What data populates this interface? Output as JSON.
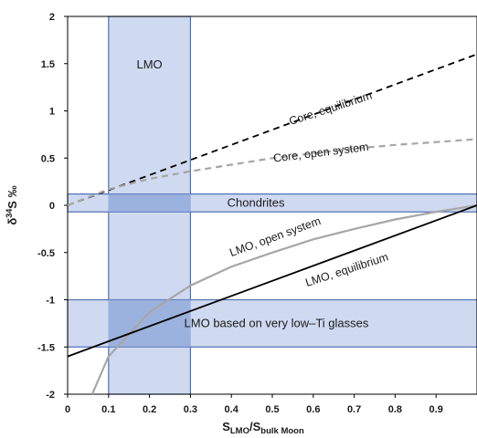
{
  "chart_data": {
    "type": "line",
    "x_range": [
      0,
      1
    ],
    "y_range": [
      -2,
      2
    ],
    "x_ticks": [
      "0",
      "0.1",
      "0.2",
      "0.3",
      "0.4",
      "0.5",
      "0.6",
      "0.7",
      "0.8",
      "0.9"
    ],
    "y_ticks": [
      "2",
      "1.5",
      "1",
      "0.5",
      "0",
      "-0.5",
      "-1",
      "-1.5",
      "-2"
    ],
    "xlabel": {
      "main": "S",
      "sub1": "LMO",
      "sep": "/S",
      "sub2": "bulk Moon"
    },
    "ylabel": {
      "delta": "δ",
      "sup": "34",
      "rest": "S ‰"
    },
    "bands": [
      {
        "label": "LMO",
        "orientation": "vertical",
        "range": [
          0.1,
          0.3
        ],
        "fill": "#c7d4ee",
        "stroke": "#4f6fb5"
      },
      {
        "label": "Chondrites",
        "orientation": "horizontal",
        "range": [
          -0.07,
          0.12
        ],
        "fill": "#c7d4ee",
        "stroke": "#4f6fb5"
      },
      {
        "label": "LMO based on very low–Ti glasses",
        "orientation": "horizontal",
        "range": [
          -1.5,
          -1.0
        ],
        "fill": "#c7d4ee",
        "stroke": "#4f6fb5"
      }
    ],
    "series": [
      {
        "name": "Core, equilibrium",
        "style": "dashed",
        "color": "#000000",
        "x": [
          0,
          1
        ],
        "y": [
          0,
          1.6
        ]
      },
      {
        "name": "Core, open system",
        "style": "dashed",
        "color": "#a6a6a6",
        "x": [
          0,
          0.1,
          0.2,
          0.3,
          0.4,
          0.5,
          0.6,
          0.7,
          0.8,
          0.9,
          1.0
        ],
        "y": [
          0,
          0.17,
          0.28,
          0.36,
          0.43,
          0.5,
          0.55,
          0.6,
          0.64,
          0.67,
          0.7
        ]
      },
      {
        "name": "LMO, open system",
        "style": "solid",
        "color": "#a6a6a6",
        "x": [
          0.06,
          0.1,
          0.2,
          0.3,
          0.4,
          0.5,
          0.6,
          0.7,
          0.8,
          0.9,
          1.0
        ],
        "y": [
          -2.0,
          -1.6,
          -1.13,
          -0.85,
          -0.65,
          -0.5,
          -0.36,
          -0.25,
          -0.15,
          -0.07,
          0
        ]
      },
      {
        "name": "LMO, equilibrium",
        "style": "solid",
        "color": "#000000",
        "x": [
          0,
          1
        ],
        "y": [
          -1.6,
          0
        ]
      }
    ]
  }
}
